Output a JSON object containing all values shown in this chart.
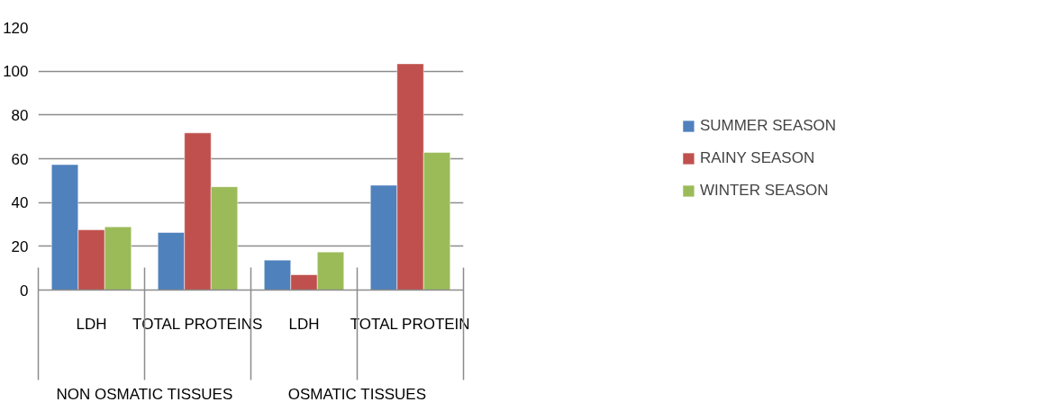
{
  "chart_data": {
    "type": "bar",
    "categories": [
      "LDH",
      "TOTAL PROTEINS",
      "LDH",
      "TOTAL PROTEIN"
    ],
    "series": [
      {
        "name": "SUMMER SEASON",
        "color": "#4f81bd",
        "values": [
          57.3,
          26.3,
          13.7,
          47.9
        ]
      },
      {
        "name": "RAINY SEASON",
        "color": "#c0504d",
        "values": [
          27.5,
          71.8,
          7.0,
          103.4
        ]
      },
      {
        "name": "WINTER SEASON",
        "color": "#9bbb59",
        "values": [
          28.9,
          47.2,
          17.4,
          62.9
        ]
      }
    ],
    "annotations": [
      "NON OSMATIC TISSUES",
      "OSMATIC TISSUES"
    ],
    "ylim": [
      0,
      120
    ],
    "yticks": [
      0,
      20,
      40,
      60,
      80,
      100,
      120
    ],
    "grid": "y",
    "legend": "right"
  }
}
